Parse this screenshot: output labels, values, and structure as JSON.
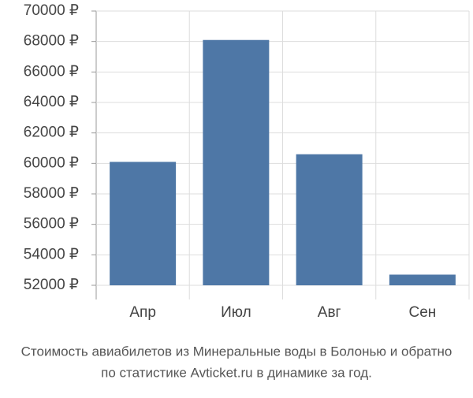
{
  "chart_data": {
    "type": "bar",
    "title": [
      "Стоимость авиабилетов из Минеральные воды в Болонью и обратно",
      "по статистике Avticket.ru в динамике за год."
    ],
    "categories": [
      "Апр",
      "Июл",
      "Авг",
      "Сен"
    ],
    "values": [
      60100,
      68100,
      60600,
      52700
    ],
    "color": "#4e77a6",
    "ylim": [
      52000,
      70000
    ],
    "yticks": [
      {
        "value": 52000,
        "label": "52000 ₽"
      },
      {
        "value": 54000,
        "label": "54000 ₽"
      },
      {
        "value": 56000,
        "label": "56000 ₽"
      },
      {
        "value": 58000,
        "label": "58000 ₽"
      },
      {
        "value": 60000,
        "label": "60000 ₽"
      },
      {
        "value": 62000,
        "label": "62000 ₽"
      },
      {
        "value": 64000,
        "label": "64000 ₽"
      },
      {
        "value": 66000,
        "label": "66000 ₽"
      },
      {
        "value": 68000,
        "label": "68000 ₽"
      },
      {
        "value": 70000,
        "label": "70000 ₽"
      }
    ],
    "grid": true
  }
}
